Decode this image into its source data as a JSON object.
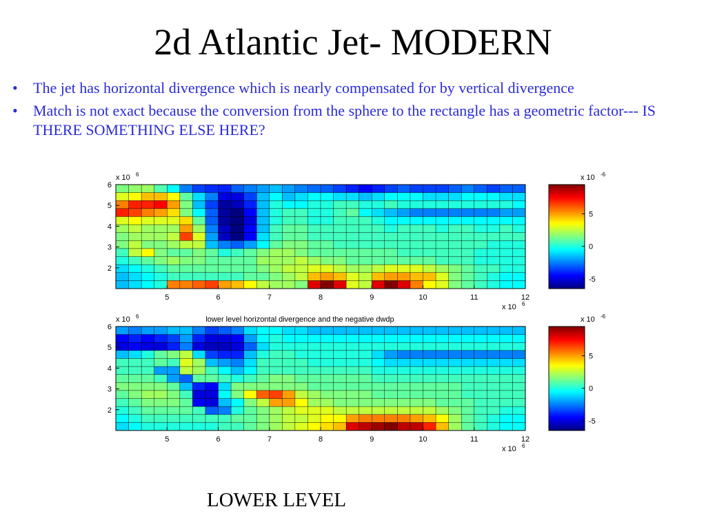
{
  "slide": {
    "title": "2d Atlantic Jet- MODERN",
    "bullets": [
      "The jet has horizontal divergence which is nearly compensated for by vertical divergence",
      "Match is not exact because the conversion from the sphere to the rectangle has a geometric factor--- IS THERE SOMETHING ELSE HERE?"
    ],
    "bullet_glyph": "•",
    "footer": "LOWER LEVEL"
  },
  "chart_data": [
    {
      "type": "heatmap",
      "title": "",
      "xlabel": "",
      "ylabel": "",
      "x_exponent_label": "x 10",
      "x_exponent": "6",
      "y_exponent_label": "x 10",
      "y_exponent": "6",
      "x_ticks": [
        "5",
        "6",
        "7",
        "8",
        "9",
        "10",
        "11",
        "12"
      ],
      "x_tick_values": [
        5,
        6,
        7,
        8,
        9,
        10,
        11,
        12
      ],
      "y_ticks": [
        "2",
        "3",
        "4",
        "5",
        "6"
      ],
      "y_tick_values": [
        2,
        3,
        4,
        5,
        6
      ],
      "xlim": [
        4.0,
        12.0
      ],
      "ylim": [
        1.0,
        6.0
      ],
      "colorbar": {
        "ticks": [
          "5",
          "0",
          "-5"
        ],
        "tick_values": [
          5,
          0,
          -5
        ],
        "range": [
          -6.5,
          9.5
        ],
        "exponent_label": "x 10",
        "exponent": "-6",
        "colormap": "jet"
      },
      "values": [
        [
          1.5,
          1.8,
          2.0,
          0.8,
          -0.5,
          -2.5,
          -3.5,
          -3.8,
          -4.0,
          -3.0,
          -2.5,
          -2.0,
          -1.5,
          -2.0,
          -2.5,
          -2.8,
          -3.0,
          -3.5,
          -4.0,
          -4.5,
          -4.0,
          -3.5,
          -3.0,
          -3.5,
          -3.5,
          -3.5,
          -3.0,
          -2.5,
          -3.0,
          -3.5,
          -3.0,
          -3.0
        ],
        [
          3.0,
          3.5,
          4.5,
          4.5,
          3.5,
          1.0,
          -1.0,
          -2.5,
          -5.0,
          -5.0,
          -3.5,
          -1.5,
          -0.5,
          -1.5,
          -1.0,
          -0.5,
          -0.5,
          -1.0,
          -1.0,
          -1.5,
          -1.0,
          -0.5,
          -0.5,
          -0.5,
          -1.0,
          -1.0,
          -1.0,
          -0.5,
          -0.5,
          -0.5,
          -1.0,
          -1.0
        ],
        [
          5.5,
          7.0,
          7.0,
          7.5,
          5.0,
          1.5,
          -1.5,
          -3.5,
          -6.0,
          -5.5,
          -4.0,
          -1.5,
          0.0,
          -0.5,
          -0.5,
          0.0,
          0.0,
          0.5,
          0.5,
          0.0,
          0.0,
          0.5,
          0.0,
          0.0,
          0.0,
          0.0,
          0.0,
          0.0,
          0.0,
          0.0,
          0.0,
          -0.5
        ],
        [
          7.0,
          6.5,
          5.5,
          5.0,
          4.0,
          1.5,
          -0.5,
          -3.0,
          -6.0,
          -6.5,
          -4.5,
          -1.5,
          0.0,
          0.5,
          0.5,
          0.0,
          0.0,
          0.5,
          1.0,
          -0.5,
          -1.0,
          -1.5,
          -2.0,
          -2.5,
          -2.5,
          -2.5,
          -2.5,
          -2.5,
          -2.5,
          -2.5,
          -2.0,
          -2.0
        ],
        [
          3.0,
          3.5,
          3.0,
          3.0,
          3.0,
          4.0,
          1.0,
          -3.0,
          -6.0,
          -6.5,
          -5.0,
          -1.5,
          0.0,
          0.5,
          0.5,
          0.0,
          0.0,
          0.5,
          0.5,
          0.5,
          0.0,
          -0.5,
          -0.5,
          -0.5,
          -0.5,
          -0.5,
          -0.5,
          -0.5,
          -0.5,
          -0.5,
          -0.5,
          -0.5
        ],
        [
          2.0,
          2.5,
          2.0,
          2.0,
          2.0,
          5.0,
          2.0,
          -2.5,
          -5.5,
          -6.5,
          -4.5,
          -1.5,
          0.5,
          1.0,
          1.0,
          0.5,
          0.5,
          0.5,
          0.5,
          0.5,
          0.5,
          0.0,
          0.5,
          0.5,
          0.5,
          0.0,
          0.5,
          0.5,
          0.0,
          0.0,
          0.5,
          0.0
        ],
        [
          1.5,
          2.0,
          2.0,
          2.0,
          2.5,
          6.5,
          3.0,
          -2.0,
          -5.5,
          -6.5,
          -4.5,
          -1.0,
          0.5,
          1.0,
          1.0,
          0.5,
          0.5,
          0.5,
          0.5,
          0.5,
          0.5,
          0.5,
          0.5,
          0.5,
          0.5,
          0.5,
          0.5,
          0.5,
          0.5,
          0.5,
          0.5,
          0.5
        ],
        [
          1.5,
          2.5,
          1.5,
          1.5,
          2.0,
          2.5,
          2.5,
          -1.5,
          -2.5,
          -3.0,
          -2.0,
          -0.5,
          1.0,
          1.5,
          1.5,
          1.0,
          1.0,
          0.5,
          0.5,
          0.5,
          0.5,
          0.5,
          0.5,
          0.5,
          0.5,
          0.5,
          0.5,
          0.5,
          0.5,
          0.0,
          0.0,
          0.0
        ],
        [
          0.5,
          2.5,
          3.5,
          1.5,
          1.0,
          1.0,
          1.5,
          1.0,
          0.0,
          0.5,
          1.0,
          1.5,
          2.0,
          2.0,
          1.5,
          1.0,
          1.0,
          1.0,
          1.0,
          1.0,
          1.0,
          1.0,
          0.5,
          0.5,
          0.5,
          0.5,
          0.5,
          0.5,
          0.0,
          0.0,
          0.0,
          0.0
        ],
        [
          0.0,
          0.5,
          1.0,
          1.5,
          2.0,
          1.5,
          1.5,
          1.0,
          1.0,
          1.0,
          1.0,
          2.0,
          2.0,
          2.0,
          2.5,
          2.0,
          1.5,
          1.5,
          1.0,
          1.0,
          1.0,
          1.0,
          1.0,
          1.0,
          1.0,
          0.5,
          0.5,
          0.5,
          0.0,
          0.0,
          0.0,
          0.0
        ],
        [
          -1.0,
          -0.5,
          0.0,
          0.5,
          1.0,
          1.0,
          1.0,
          1.0,
          1.0,
          1.0,
          1.0,
          1.5,
          2.0,
          2.5,
          2.5,
          3.0,
          3.0,
          2.5,
          2.0,
          2.0,
          2.5,
          3.0,
          3.0,
          3.0,
          2.5,
          2.0,
          1.5,
          1.0,
          0.5,
          0.5,
          0.0,
          0.0
        ],
        [
          -1.5,
          -1.0,
          -0.5,
          0.0,
          0.5,
          0.5,
          0.5,
          0.5,
          0.5,
          0.5,
          1.0,
          1.0,
          1.5,
          2.0,
          2.5,
          4.5,
          5.0,
          4.5,
          3.0,
          2.5,
          4.5,
          5.0,
          5.0,
          4.5,
          4.5,
          3.0,
          1.5,
          1.0,
          0.5,
          0.0,
          -0.5,
          -0.5
        ],
        [
          -1.5,
          -1.0,
          -0.5,
          0.0,
          5.5,
          5.5,
          6.0,
          6.5,
          5.0,
          4.5,
          3.5,
          2.5,
          2.0,
          2.0,
          1.5,
          8.0,
          9.5,
          8.0,
          3.0,
          2.5,
          8.0,
          9.5,
          8.0,
          5.5,
          3.5,
          3.0,
          1.5,
          1.0,
          0.5,
          0.0,
          -0.5,
          -0.5
        ]
      ]
    },
    {
      "type": "heatmap",
      "title": "lower level horizontal divergence and the negative dwdp",
      "xlabel": "",
      "ylabel": "",
      "x_exponent_label": "x 10",
      "x_exponent": "6",
      "y_exponent_label": "x 10",
      "y_exponent": "6",
      "x_ticks": [
        "5",
        "6",
        "7",
        "8",
        "9",
        "10",
        "11",
        "12"
      ],
      "x_tick_values": [
        5,
        6,
        7,
        8,
        9,
        10,
        11,
        12
      ],
      "y_ticks": [
        "2",
        "3",
        "4",
        "5",
        "6"
      ],
      "y_tick_values": [
        2,
        3,
        4,
        5,
        6
      ],
      "xlim": [
        4.0,
        12.0
      ],
      "ylim": [
        1.0,
        6.0
      ],
      "colorbar": {
        "ticks": [
          "5",
          "0",
          "-5"
        ],
        "tick_values": [
          5,
          0,
          -5
        ],
        "range": [
          -6.5,
          9.5
        ],
        "exponent_label": "x 10",
        "exponent": "-6",
        "colormap": "jet"
      },
      "values": [
        [
          -2.0,
          -2.5,
          -2.0,
          -2.0,
          -1.5,
          -1.5,
          -2.5,
          -3.5,
          -3.0,
          -2.5,
          -1.0,
          -0.5,
          -0.5,
          -1.0,
          -1.0,
          -1.5,
          -1.5,
          -1.5,
          -1.5,
          -1.5,
          -1.5,
          -1.5,
          -1.5,
          -1.5,
          -1.5,
          -1.5,
          -1.5,
          -1.5,
          -1.5,
          -1.5,
          -1.5,
          -1.5
        ],
        [
          -4.5,
          -4.0,
          -4.5,
          -4.0,
          -3.5,
          -2.0,
          -4.0,
          -5.0,
          -5.0,
          -4.5,
          -2.0,
          -0.5,
          0.0,
          -0.5,
          -0.5,
          -0.5,
          -0.5,
          -0.5,
          -0.5,
          -0.5,
          -0.5,
          -0.5,
          -0.5,
          -0.5,
          -0.5,
          -0.5,
          -0.5,
          -0.5,
          -0.5,
          -0.5,
          -0.5,
          -0.5
        ],
        [
          -5.0,
          -4.5,
          -5.0,
          -5.0,
          -4.0,
          -2.5,
          -5.0,
          -5.5,
          -5.5,
          -5.0,
          -3.0,
          -1.0,
          0.0,
          0.0,
          0.0,
          0.0,
          0.0,
          0.0,
          0.0,
          0.0,
          0.0,
          0.0,
          0.0,
          0.0,
          0.0,
          0.0,
          0.0,
          0.0,
          0.0,
          0.0,
          0.0,
          0.0
        ],
        [
          -1.5,
          -1.0,
          0.0,
          1.0,
          1.5,
          2.5,
          -1.0,
          -3.5,
          -4.0,
          -4.0,
          -1.5,
          0.0,
          0.5,
          0.5,
          0.0,
          0.0,
          0.0,
          0.0,
          0.0,
          0.0,
          -1.0,
          -2.0,
          -2.5,
          -2.5,
          -2.5,
          -2.5,
          -2.5,
          -2.5,
          -2.5,
          -2.5,
          -2.5,
          -2.5
        ],
        [
          0.5,
          0.5,
          0.5,
          1.0,
          0.5,
          3.0,
          2.0,
          -1.5,
          -2.0,
          -2.5,
          -1.0,
          0.5,
          0.5,
          0.5,
          0.5,
          0.0,
          0.0,
          0.0,
          0.0,
          0.0,
          -0.5,
          -1.0,
          -1.0,
          -1.0,
          -1.0,
          -1.0,
          -1.0,
          -1.0,
          -1.0,
          -1.0,
          -1.0,
          -1.0
        ],
        [
          0.5,
          0.5,
          0.5,
          -2.0,
          -2.0,
          2.5,
          2.0,
          0.5,
          -0.5,
          -1.5,
          -0.5,
          0.5,
          0.5,
          0.5,
          0.5,
          0.5,
          0.5,
          0.5,
          0.5,
          0.5,
          0.0,
          0.0,
          0.0,
          0.0,
          0.0,
          0.0,
          0.0,
          0.0,
          0.0,
          0.0,
          0.0,
          0.0
        ],
        [
          1.0,
          1.0,
          1.0,
          0.5,
          -2.0,
          -3.0,
          1.0,
          1.0,
          0.5,
          0.0,
          0.5,
          1.0,
          1.5,
          1.5,
          1.0,
          1.0,
          1.0,
          1.0,
          1.0,
          1.0,
          0.5,
          0.5,
          0.5,
          0.5,
          0.5,
          0.5,
          0.5,
          0.5,
          0.5,
          0.5,
          0.5,
          0.5
        ],
        [
          1.5,
          1.5,
          1.5,
          1.5,
          1.0,
          -1.5,
          -4.0,
          -4.5,
          -1.0,
          1.5,
          1.5,
          1.5,
          1.5,
          1.5,
          1.5,
          1.0,
          1.0,
          1.0,
          1.0,
          1.0,
          1.0,
          1.0,
          1.0,
          1.0,
          1.0,
          1.0,
          1.0,
          0.5,
          0.5,
          0.5,
          0.5,
          0.5
        ],
        [
          1.0,
          1.5,
          2.0,
          2.0,
          1.5,
          0.5,
          -5.0,
          -5.0,
          -0.5,
          1.5,
          3.5,
          6.0,
          6.5,
          5.0,
          2.5,
          2.0,
          1.5,
          1.5,
          1.5,
          1.5,
          1.0,
          1.0,
          1.0,
          1.0,
          1.0,
          1.0,
          1.0,
          0.5,
          0.5,
          0.5,
          0.5,
          0.5
        ],
        [
          0.5,
          1.0,
          1.5,
          1.5,
          1.5,
          1.0,
          -4.5,
          -5.0,
          -1.5,
          -0.5,
          1.5,
          2.5,
          5.0,
          5.0,
          3.5,
          2.0,
          2.0,
          1.5,
          1.5,
          1.5,
          1.5,
          1.5,
          1.5,
          1.5,
          1.5,
          1.0,
          1.0,
          1.0,
          0.5,
          0.5,
          0.5,
          0.5
        ],
        [
          0.0,
          0.5,
          1.0,
          1.0,
          1.0,
          1.0,
          0.5,
          -3.0,
          -2.5,
          0.0,
          1.0,
          1.5,
          2.0,
          2.5,
          3.0,
          3.0,
          3.0,
          2.5,
          2.5,
          2.5,
          2.5,
          2.5,
          2.5,
          2.5,
          2.5,
          2.0,
          1.5,
          1.0,
          0.5,
          0.5,
          0.0,
          0.0
        ],
        [
          -0.5,
          0.0,
          0.5,
          0.5,
          0.5,
          0.5,
          0.5,
          0.5,
          0.5,
          1.0,
          1.0,
          1.5,
          2.0,
          2.5,
          2.5,
          3.0,
          3.5,
          3.5,
          5.0,
          5.5,
          5.5,
          5.5,
          5.5,
          5.0,
          4.5,
          3.5,
          2.0,
          1.0,
          0.5,
          0.0,
          -0.5,
          -0.5
        ],
        [
          -1.0,
          -0.5,
          0.0,
          0.0,
          0.0,
          0.0,
          0.0,
          0.0,
          0.5,
          0.5,
          1.0,
          1.5,
          2.0,
          2.5,
          3.0,
          3.5,
          4.0,
          4.5,
          8.0,
          8.5,
          9.0,
          9.5,
          8.5,
          8.5,
          7.0,
          4.5,
          2.0,
          1.0,
          0.5,
          0.0,
          -0.5,
          -0.5
        ]
      ]
    }
  ]
}
